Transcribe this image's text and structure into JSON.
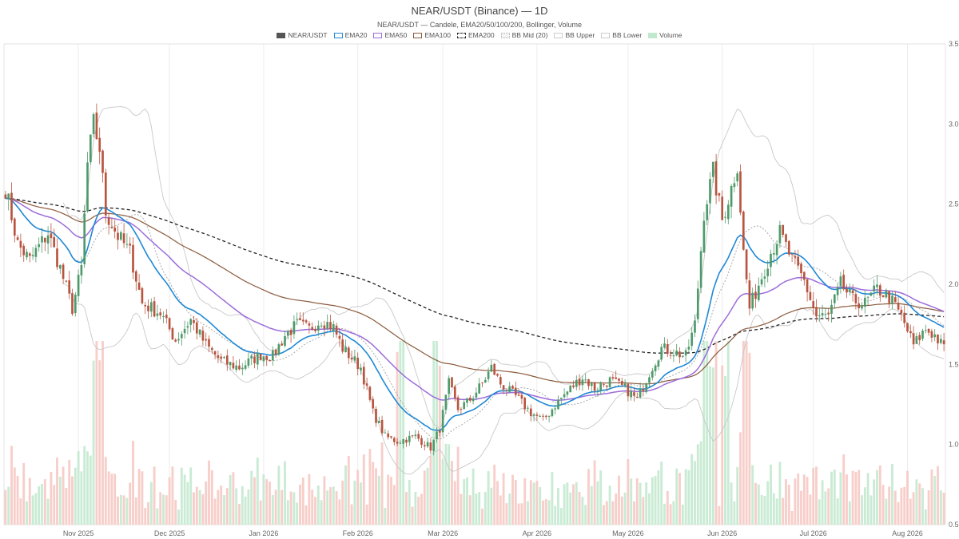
{
  "chart_data": {
    "type": "candlestick",
    "title": "NEAR/USDT (Binance) — 1D",
    "subtitle": "NEAR/USDT — Candele, EMA20/50/100/200, Bollinger, Volume",
    "legend": [
      {
        "label": "NEAR/USDT",
        "color": "#555555",
        "style": "fill"
      },
      {
        "label": "EMA20",
        "color": "#1f88d6",
        "style": "line"
      },
      {
        "label": "EMA50",
        "color": "#9c6ddb",
        "style": "line"
      },
      {
        "label": "EMA100",
        "color": "#8b5a3c",
        "style": "line"
      },
      {
        "label": "EMA200",
        "color": "#222222",
        "style": "dash"
      },
      {
        "label": "BB Mid (20)",
        "color": "#aaaaaa",
        "style": "dot"
      },
      {
        "label": "BB Upper",
        "color": "#cccccc",
        "style": "line"
      },
      {
        "label": "BB Lower",
        "color": "#cccccc",
        "style": "line"
      },
      {
        "label": "Volume",
        "color": "#bfe8cc",
        "style": "fill"
      }
    ],
    "x_range": [
      "2025-10-08",
      "2026-08-13"
    ],
    "x_ticks": [
      {
        "label": "Nov 2025",
        "date": "2025-11-01"
      },
      {
        "label": "Dec 2025",
        "date": "2025-12-01"
      },
      {
        "label": "Jan 2026",
        "date": "2026-01-01"
      },
      {
        "label": "Feb 2026",
        "date": "2026-02-01"
      },
      {
        "label": "Mar 2026",
        "date": "2026-03-01"
      },
      {
        "label": "Apr 2026",
        "date": "2026-04-01"
      },
      {
        "label": "May 2026",
        "date": "2026-05-01"
      },
      {
        "label": "Jun 2026",
        "date": "2026-06-01"
      },
      {
        "label": "Jul 2026",
        "date": "2026-07-01"
      },
      {
        "label": "Aug 2026",
        "date": "2026-08-01"
      }
    ],
    "y_axis": {
      "position": "right",
      "ylim": [
        0.5,
        3.5
      ],
      "ticks": [
        "0.5",
        "1.0",
        "1.5",
        "2.0",
        "2.5",
        "3.0",
        "3.5"
      ]
    },
    "grid": {
      "vertical": true,
      "horizontal": false
    },
    "close_anchors": [
      [
        "2025-10-08",
        2.6
      ],
      [
        "2025-10-12",
        2.25
      ],
      [
        "2025-10-16",
        2.15
      ],
      [
        "2025-10-22",
        2.32
      ],
      [
        "2025-10-26",
        2.1
      ],
      [
        "2025-10-30",
        1.85
      ],
      [
        "2025-11-02",
        2.1
      ],
      [
        "2025-11-04",
        2.75
      ],
      [
        "2025-11-06",
        3.0
      ],
      [
        "2025-11-08",
        2.85
      ],
      [
        "2025-11-10",
        2.45
      ],
      [
        "2025-11-14",
        2.3
      ],
      [
        "2025-11-18",
        2.2
      ],
      [
        "2025-11-22",
        1.88
      ],
      [
        "2025-11-28",
        1.82
      ],
      [
        "2025-12-03",
        1.65
      ],
      [
        "2025-12-08",
        1.78
      ],
      [
        "2025-12-13",
        1.62
      ],
      [
        "2025-12-18",
        1.52
      ],
      [
        "2025-12-24",
        1.48
      ],
      [
        "2025-12-31",
        1.56
      ],
      [
        "2026-01-04",
        1.55
      ],
      [
        "2026-01-08",
        1.68
      ],
      [
        "2026-01-12",
        1.75
      ],
      [
        "2026-01-16",
        1.72
      ],
      [
        "2026-01-20",
        1.78
      ],
      [
        "2026-01-24",
        1.73
      ],
      [
        "2026-01-27",
        1.6
      ],
      [
        "2026-02-02",
        1.48
      ],
      [
        "2026-02-06",
        1.2
      ],
      [
        "2026-02-10",
        1.05
      ],
      [
        "2026-02-14",
        1.02
      ],
      [
        "2026-02-20",
        1.05
      ],
      [
        "2026-02-25",
        0.98
      ],
      [
        "2026-02-28",
        1.1
      ],
      [
        "2026-03-03",
        1.38
      ],
      [
        "2026-03-06",
        1.22
      ],
      [
        "2026-03-10",
        1.28
      ],
      [
        "2026-03-14",
        1.38
      ],
      [
        "2026-03-17",
        1.48
      ],
      [
        "2026-03-20",
        1.38
      ],
      [
        "2026-03-25",
        1.3
      ],
      [
        "2026-03-30",
        1.2
      ],
      [
        "2026-04-03",
        1.15
      ],
      [
        "2026-04-08",
        1.27
      ],
      [
        "2026-04-12",
        1.35
      ],
      [
        "2026-04-16",
        1.42
      ],
      [
        "2026-04-20",
        1.35
      ],
      [
        "2026-04-25",
        1.4
      ],
      [
        "2026-04-30",
        1.35
      ],
      [
        "2026-05-04",
        1.28
      ],
      [
        "2026-05-08",
        1.45
      ],
      [
        "2026-05-12",
        1.6
      ],
      [
        "2026-05-16",
        1.58
      ],
      [
        "2026-05-20",
        1.55
      ],
      [
        "2026-05-23",
        1.75
      ],
      [
        "2026-05-26",
        2.45
      ],
      [
        "2026-05-29",
        2.7
      ],
      [
        "2026-06-01",
        2.4
      ],
      [
        "2026-06-04",
        2.6
      ],
      [
        "2026-06-06",
        2.75
      ],
      [
        "2026-06-08",
        2.2
      ],
      [
        "2026-06-10",
        1.85
      ],
      [
        "2026-06-14",
        2.05
      ],
      [
        "2026-06-17",
        2.2
      ],
      [
        "2026-06-20",
        2.32
      ],
      [
        "2026-06-24",
        2.15
      ],
      [
        "2026-06-28",
        2.02
      ],
      [
        "2026-07-02",
        1.8
      ],
      [
        "2026-07-06",
        1.8
      ],
      [
        "2026-07-10",
        2.0
      ],
      [
        "2026-07-14",
        1.9
      ],
      [
        "2026-07-18",
        1.88
      ],
      [
        "2026-07-22",
        1.97
      ],
      [
        "2026-07-26",
        1.92
      ],
      [
        "2026-07-30",
        1.8
      ],
      [
        "2026-08-03",
        1.62
      ],
      [
        "2026-08-07",
        1.72
      ],
      [
        "2026-08-10",
        1.68
      ],
      [
        "2026-08-13",
        1.6
      ]
    ],
    "series_description": "Daily OHLC candles (green = up, red = down), EMA20/50/100/200 overlays, Bollinger Bands (20) and daily volume bars along the bottom."
  }
}
